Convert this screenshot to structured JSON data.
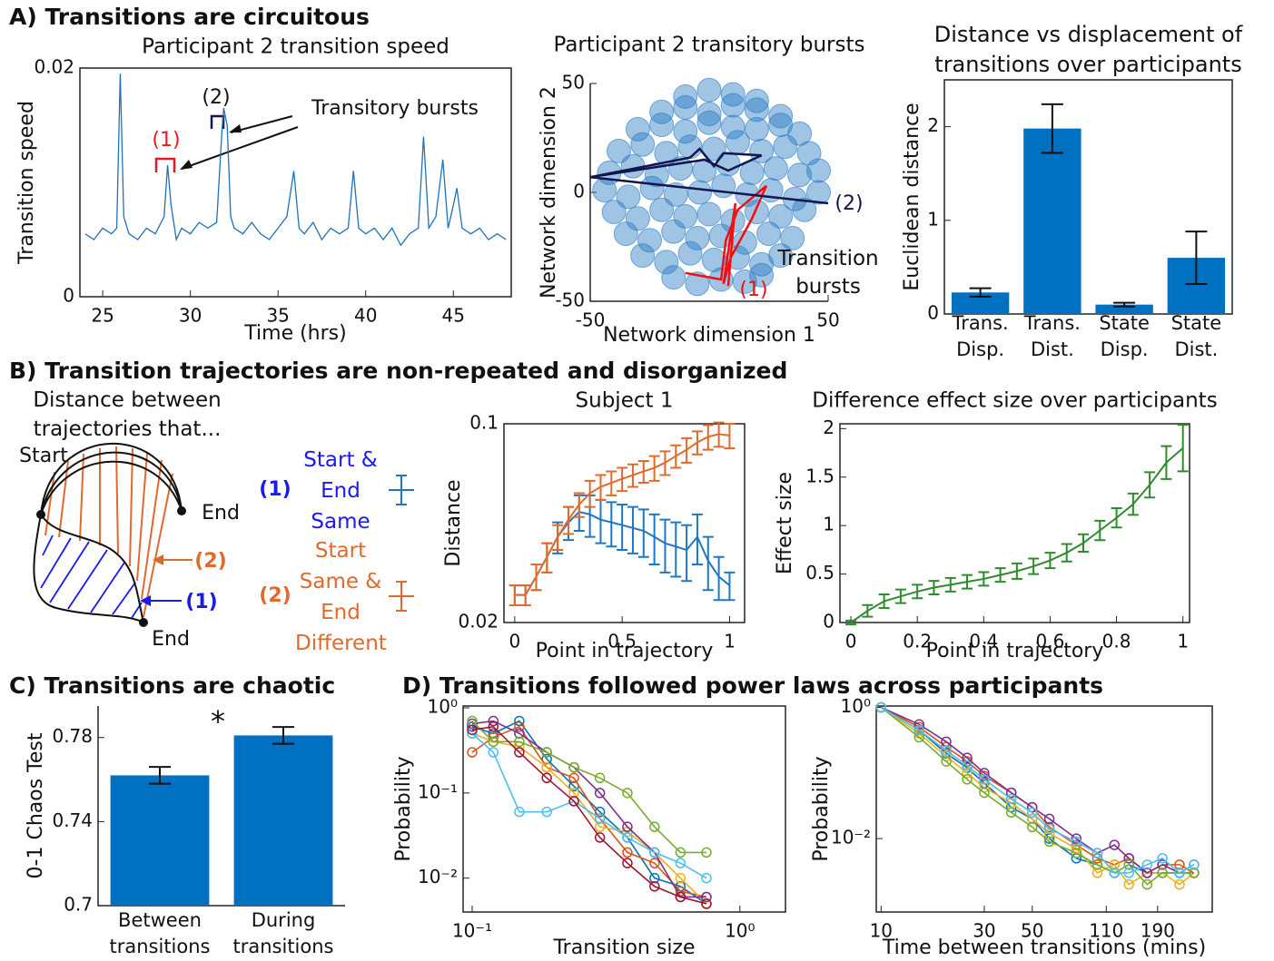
{
  "headings": [
    "A) Transitions are circuitous",
    "B) Transition trajectories are non-repeated and disorganized",
    "C) Transitions are chaotic",
    "D) Transitions followed power laws across participants"
  ],
  "diagram": {
    "title": "Distance between trajectories that...",
    "start": "Start",
    "ends": [
      "End",
      "End"
    ],
    "arrows": [
      "(2)",
      "(1)"
    ]
  },
  "chart_data": [
    {
      "type": "line",
      "title": "Participant 2 transition speed",
      "xlabel": "Time (hrs)",
      "ylabel": "Transition speed",
      "x": [
        24,
        24.5,
        25,
        25.5,
        25.8,
        26,
        26.2,
        26.5,
        27,
        27.5,
        28,
        28.5,
        28.7,
        28.9,
        29.2,
        29.5,
        30,
        30.5,
        31,
        31.5,
        31.8,
        31.9,
        32.1,
        32.3,
        32.5,
        33,
        33.5,
        34,
        34.5,
        35,
        35.5,
        35.9,
        36.2,
        36.5,
        37,
        37.5,
        38,
        38.5,
        39,
        39.3,
        39.6,
        40,
        40.5,
        41,
        41.5,
        42,
        42.5,
        43,
        43.3,
        43.6,
        44,
        44.4,
        44.7,
        45,
        45.2,
        45.5,
        46,
        46.5,
        47,
        47.5,
        48
      ],
      "series": [
        {
          "color": "#1f72b8",
          "values": [
            0.0055,
            0.005,
            0.006,
            0.0055,
            0.006,
            0.0195,
            0.007,
            0.0055,
            0.005,
            0.006,
            0.0055,
            0.007,
            0.0115,
            0.008,
            0.005,
            0.006,
            0.0055,
            0.0065,
            0.006,
            0.0065,
            0.0145,
            0.0165,
            0.015,
            0.007,
            0.006,
            0.0055,
            0.0065,
            0.0055,
            0.005,
            0.006,
            0.007,
            0.011,
            0.006,
            0.0055,
            0.0065,
            0.005,
            0.006,
            0.0055,
            0.006,
            0.011,
            0.006,
            0.0055,
            0.006,
            0.005,
            0.006,
            0.0045,
            0.0055,
            0.006,
            0.014,
            0.006,
            0.007,
            0.012,
            0.006,
            0.008,
            0.0095,
            0.006,
            0.0055,
            0.006,
            0.005,
            0.0055,
            0.005
          ]
        }
      ],
      "xlim": [
        23.7,
        48.3
      ],
      "ylim": [
        0,
        0.02
      ],
      "xticks": [
        25,
        30,
        35,
        40,
        45
      ],
      "yticks": [
        0,
        0.02
      ],
      "annotations": [
        {
          "text": "(1)",
          "color": "#e8191b"
        },
        {
          "text": "(2)",
          "color": "#111111"
        },
        {
          "text": "Transitory bursts",
          "color": "#111111"
        }
      ]
    },
    {
      "type": "scatter",
      "title": "Participant 2 transitory bursts",
      "xlabel": "Network dimension 1",
      "ylabel": "Network dimension 2",
      "color": "#2b7cc4",
      "x": [
        -10,
        0,
        10,
        20,
        -20,
        -10,
        0,
        10,
        20,
        30,
        -30,
        -20,
        -10,
        0,
        10,
        20,
        30,
        38,
        -38,
        -28,
        -18,
        -8,
        2,
        12,
        22,
        32,
        42,
        -42,
        -32,
        -22,
        -12,
        -2,
        8,
        18,
        28,
        38,
        46,
        -44,
        -34,
        -24,
        -14,
        -4,
        6,
        16,
        26,
        36,
        46,
        -40,
        -30,
        -20,
        -10,
        0,
        10,
        20,
        30,
        40,
        -35,
        -25,
        -15,
        -5,
        5,
        15,
        25,
        35,
        -28,
        -18,
        -8,
        2,
        12,
        22,
        30,
        -15,
        -5,
        5,
        15,
        22
      ],
      "y": [
        44,
        47,
        45,
        42,
        37,
        39,
        36,
        40,
        38,
        35,
        29,
        31,
        28,
        32,
        30,
        29,
        31,
        27,
        19,
        22,
        18,
        21,
        20,
        23,
        19,
        21,
        18,
        9,
        12,
        8,
        11,
        10,
        13,
        9,
        11,
        8,
        10,
        1,
        -2,
        2,
        -1,
        0,
        3,
        -1,
        1,
        -3,
        0,
        -9,
        -12,
        -8,
        -11,
        -10,
        -13,
        -9,
        -11,
        -8,
        -19,
        -22,
        -18,
        -21,
        -20,
        -23,
        -19,
        -21,
        -29,
        -32,
        -28,
        -31,
        -30,
        -33,
        -29,
        -39,
        -42,
        -40,
        -41,
        -38
      ],
      "xlim": [
        -50,
        50
      ],
      "ylim": [
        -50,
        50
      ],
      "xticks": [
        -50,
        50
      ],
      "yticks": [
        -50,
        0,
        50
      ],
      "trajectories": [
        {
          "label": "(1)",
          "color": "#ee1111",
          "x": [
            -10,
            5,
            7,
            12,
            24,
            18,
            9,
            6,
            11,
            8
          ],
          "y": [
            -37,
            -40,
            -22,
            -8,
            3,
            -12,
            -30,
            -42,
            -5,
            -43
          ]
        },
        {
          "label": "(2)",
          "color": "#12164f",
          "x": [
            -50,
            -8,
            -4,
            2,
            6,
            22,
            8,
            -2,
            -50,
            50
          ],
          "y": [
            7,
            16,
            20,
            12,
            18,
            17,
            10,
            15,
            7,
            -5
          ]
        }
      ],
      "annotation": "Transition bursts"
    },
    {
      "type": "bar",
      "title": "Distance vs displacement of transitions over participants",
      "ylabel": "Euclidean distance",
      "categories": [
        "Trans. Disp.",
        "Trans. Dist.",
        "State Disp.",
        "State Dist."
      ],
      "values": [
        0.23,
        1.98,
        0.1,
        0.6
      ],
      "errors": [
        0.045,
        0.26,
        0.02,
        0.28
      ],
      "color": "#0070c0",
      "ylim": [
        0,
        2.5
      ],
      "yticks": [
        0,
        1,
        2
      ]
    },
    {
      "type": "errorline",
      "title": "Subject 1",
      "xlabel": "Point in trajectory",
      "ylabel": "Distance",
      "log_y": true,
      "x": [
        0,
        0.05,
        0.1,
        0.15,
        0.2,
        0.25,
        0.3,
        0.35,
        0.4,
        0.45,
        0.5,
        0.55,
        0.6,
        0.65,
        0.7,
        0.75,
        0.8,
        0.85,
        0.9,
        0.95,
        1
      ],
      "series": [
        {
          "label": "(1)",
          "name": "Start & End Same",
          "name_color": "#1a1aee",
          "color": "#1f77c4",
          "values": [
            0.025,
            0.025,
            0.029,
            0.034,
            0.04,
            0.045,
            0.049,
            0.048,
            0.046,
            0.045,
            0.044,
            0.043,
            0.042,
            0.04,
            0.038,
            0.037,
            0.036,
            0.04,
            0.033,
            0.029,
            0.027
          ],
          "errors": [
            0.002,
            0.002,
            0.003,
            0.004,
            0.005,
            0.006,
            0.007,
            0.008,
            0.008,
            0.008,
            0.008,
            0.008,
            0.008,
            0.008,
            0.008,
            0.008,
            0.008,
            0.008,
            0.007,
            0.005,
            0.003
          ]
        },
        {
          "label": "(2)",
          "name": "Start Same & End Different",
          "name_color": "#e06a2c",
          "color": "#e06a2c",
          "values": [
            0.025,
            0.025,
            0.029,
            0.034,
            0.04,
            0.046,
            0.052,
            0.057,
            0.06,
            0.062,
            0.064,
            0.066,
            0.068,
            0.07,
            0.073,
            0.077,
            0.081,
            0.086,
            0.09,
            0.092,
            0.091
          ],
          "errors": [
            0.002,
            0.002,
            0.003,
            0.004,
            0.004,
            0.005,
            0.005,
            0.006,
            0.006,
            0.006,
            0.006,
            0.006,
            0.006,
            0.007,
            0.007,
            0.007,
            0.008,
            0.008,
            0.009,
            0.009,
            0.009
          ]
        }
      ],
      "xlim": [
        -0.05,
        1.07
      ],
      "ylim": [
        0.02,
        0.1
      ],
      "xticks": [
        0,
        0.5,
        1
      ],
      "yticks": [
        0.02,
        0.1
      ]
    },
    {
      "type": "errorline",
      "title": "Difference effect size over participants",
      "xlabel": "Point in trajectory",
      "ylabel": "Effect size",
      "x": [
        0,
        0.05,
        0.1,
        0.15,
        0.2,
        0.25,
        0.3,
        0.35,
        0.4,
        0.45,
        0.5,
        0.55,
        0.6,
        0.65,
        0.7,
        0.75,
        0.8,
        0.85,
        0.9,
        0.95,
        1
      ],
      "series": [
        {
          "color": "#2e8b2e",
          "values": [
            0,
            0.12,
            0.22,
            0.27,
            0.32,
            0.36,
            0.39,
            0.42,
            0.45,
            0.49,
            0.53,
            0.58,
            0.64,
            0.72,
            0.82,
            0.95,
            1.08,
            1.22,
            1.42,
            1.65,
            1.8
          ],
          "errors": [
            0.02,
            0.06,
            0.07,
            0.07,
            0.07,
            0.07,
            0.07,
            0.07,
            0.07,
            0.07,
            0.08,
            0.08,
            0.08,
            0.09,
            0.09,
            0.1,
            0.1,
            0.11,
            0.13,
            0.17,
            0.24
          ]
        }
      ],
      "xlim": [
        -0.033,
        1.02
      ],
      "ylim": [
        0,
        2.05
      ],
      "xticks": [
        0,
        0.2,
        0.4,
        0.6,
        0.8,
        1
      ],
      "yticks": [
        0,
        0.5,
        1,
        1.5,
        2
      ]
    },
    {
      "type": "bar",
      "ylabel": "0-1 Chaos Test",
      "categories": [
        "Between transitions",
        "During transitions"
      ],
      "values": [
        0.762,
        0.781
      ],
      "errors": [
        0.004,
        0.004
      ],
      "color": "#0070c0",
      "ylim": [
        0.7,
        0.795
      ],
      "yticks": [
        0.7,
        0.74,
        0.78
      ],
      "annotation": "*"
    },
    {
      "type": "line",
      "xlabel": "Transition size",
      "ylabel": "Probability",
      "log_x": true,
      "log_y": true,
      "markers": true,
      "x": [
        0.1,
        0.12,
        0.15,
        0.19,
        0.24,
        0.3,
        0.38,
        0.48,
        0.6,
        0.75
      ],
      "series": [
        {
          "color": "#0072bd",
          "values": [
            0.6,
            0.5,
            0.7,
            0.25,
            0.12,
            0.06,
            0.03,
            0.01,
            0.008,
            0.005
          ]
        },
        {
          "color": "#d95319",
          "values": [
            0.3,
            0.45,
            0.6,
            0.2,
            0.15,
            0.05,
            0.02,
            0.015,
            0.007,
            0.006
          ]
        },
        {
          "color": "#edb120",
          "values": [
            0.5,
            0.4,
            0.35,
            0.2,
            0.1,
            0.04,
            0.035,
            0.02,
            0.01,
            0.005
          ]
        },
        {
          "color": "#7e2f8e",
          "values": [
            0.65,
            0.7,
            0.5,
            0.3,
            0.2,
            0.1,
            0.04,
            0.02,
            0.006,
            0.006
          ]
        },
        {
          "color": "#77ac30",
          "values": [
            0.7,
            0.4,
            0.4,
            0.3,
            0.2,
            0.15,
            0.1,
            0.04,
            0.02,
            0.02
          ]
        },
        {
          "color": "#4dbeee",
          "values": [
            0.5,
            0.3,
            0.06,
            0.06,
            0.08,
            0.05,
            0.03,
            0.02,
            0.015,
            0.01
          ]
        },
        {
          "color": "#a2142f",
          "values": [
            0.55,
            0.6,
            0.3,
            0.15,
            0.08,
            0.03,
            0.015,
            0.008,
            0.006,
            0.005
          ]
        }
      ],
      "xlim": [
        0.0925,
        1.48
      ],
      "ylim": [
        0.004,
        1.05
      ],
      "xticks": [
        {
          "value": 0.1,
          "label": "10⁻¹"
        },
        {
          "value": 1,
          "label": "10⁰"
        }
      ],
      "yticks": [
        {
          "value": 0.01,
          "label": "10⁻²"
        },
        {
          "value": 0.1,
          "label": "10⁻¹"
        },
        {
          "value": 1,
          "label": "10⁰"
        }
      ]
    },
    {
      "type": "line",
      "xlabel": "Time between transitions (mins)",
      "ylabel": "Probability",
      "log_x": true,
      "log_y": true,
      "markers": true,
      "x": [
        10,
        15,
        20,
        25,
        30,
        40,
        50,
        60,
        80,
        100,
        120,
        140,
        170,
        200,
        240,
        280
      ],
      "series": [
        {
          "color": "#0072bd",
          "values": [
            1,
            0.45,
            0.2,
            0.12,
            0.07,
            0.03,
            0.02,
            0.01,
            0.005,
            0.004,
            0.003,
            0.004,
            0.003,
            0.003,
            0.003,
            0.004
          ]
        },
        {
          "color": "#d95319",
          "values": [
            1,
            0.5,
            0.25,
            0.15,
            0.09,
            0.05,
            0.03,
            0.015,
            0.008,
            0.005,
            0.004,
            0.005,
            0.003,
            0.004,
            0.004,
            0.003
          ]
        },
        {
          "color": "#edb120",
          "values": [
            1,
            0.4,
            0.18,
            0.1,
            0.06,
            0.035,
            0.02,
            0.012,
            0.007,
            0.003,
            0.004,
            0.002,
            0.003,
            0.003,
            0.002,
            0.003
          ]
        },
        {
          "color": "#7e2f8e",
          "values": [
            1,
            0.55,
            0.3,
            0.17,
            0.1,
            0.05,
            0.03,
            0.02,
            0.01,
            0.006,
            0.008,
            0.005,
            0.003,
            0.004,
            0.003,
            0.003
          ]
        },
        {
          "color": "#77ac30",
          "values": [
            1,
            0.35,
            0.15,
            0.08,
            0.05,
            0.025,
            0.015,
            0.009,
            0.006,
            0.004,
            0.003,
            0.004,
            0.002,
            0.003,
            0.003,
            0.003
          ]
        },
        {
          "color": "#4dbeee",
          "values": [
            1,
            0.45,
            0.22,
            0.13,
            0.08,
            0.04,
            0.025,
            0.014,
            0.009,
            0.006,
            0.003,
            0.003,
            0.004,
            0.005,
            0.003,
            0.004
          ]
        }
      ],
      "xlim": [
        9.5,
        340
      ],
      "ylim": [
        0.00076,
        1.05
      ],
      "xticks": [
        10,
        30,
        50,
        110,
        190
      ],
      "yticks": [
        {
          "value": 0.01,
          "label": "10⁻²"
        },
        {
          "value": 1,
          "label": "10⁰"
        }
      ]
    }
  ]
}
